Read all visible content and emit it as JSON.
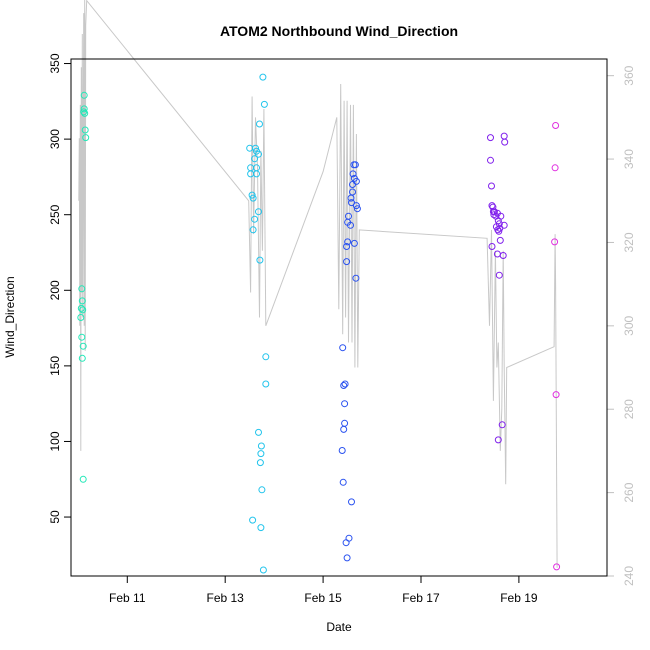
{
  "chart_data": {
    "type": "scatter",
    "title": "ATOM2 Northbound Wind_Direction",
    "xlabel": "Date",
    "ylabel": "Wind_Direction",
    "x_ticks": [
      "Feb 11",
      "Feb 13",
      "Feb 15",
      "Feb 17",
      "Feb 19"
    ],
    "x_tick_values": [
      11,
      13,
      15,
      17,
      19
    ],
    "xlim": [
      9.85,
      20.8
    ],
    "ylim": [
      11,
      353
    ],
    "y_ticks": [
      50,
      100,
      150,
      200,
      250,
      300,
      350
    ],
    "y2lim": [
      240,
      364
    ],
    "y2_ticks": [
      240,
      260,
      280,
      300,
      320,
      340,
      360
    ],
    "y2_color": "#c0c0c0",
    "line_color": "#c8c8c8",
    "grid": false,
    "points": [
      {
        "x": 10.07,
        "y": 201,
        "color": "#22e8b8"
      },
      {
        "x": 10.08,
        "y": 193,
        "color": "#22e8b8"
      },
      {
        "x": 10.06,
        "y": 188,
        "color": "#22e8b8"
      },
      {
        "x": 10.09,
        "y": 187,
        "color": "#22e8b8"
      },
      {
        "x": 10.05,
        "y": 182,
        "color": "#22e8b8"
      },
      {
        "x": 10.07,
        "y": 169,
        "color": "#22e8b8"
      },
      {
        "x": 10.1,
        "y": 163,
        "color": "#22e8b8"
      },
      {
        "x": 10.08,
        "y": 155,
        "color": "#22e8b8"
      },
      {
        "x": 10.1,
        "y": 75,
        "color": "#22e8b8"
      },
      {
        "x": 10.12,
        "y": 329,
        "color": "#22e8b8"
      },
      {
        "x": 10.12,
        "y": 320,
        "color": "#22e8b8"
      },
      {
        "x": 10.11,
        "y": 318,
        "color": "#22e8b8"
      },
      {
        "x": 10.13,
        "y": 317,
        "color": "#22e8b8"
      },
      {
        "x": 10.14,
        "y": 306,
        "color": "#22e8b8"
      },
      {
        "x": 10.15,
        "y": 301,
        "color": "#22e8b8"
      },
      {
        "x": 13.5,
        "y": 294,
        "color": "#22c4ec"
      },
      {
        "x": 13.62,
        "y": 294,
        "color": "#22c4ec"
      },
      {
        "x": 13.64,
        "y": 292,
        "color": "#22c4ec"
      },
      {
        "x": 13.68,
        "y": 290,
        "color": "#22c4ec"
      },
      {
        "x": 13.6,
        "y": 287,
        "color": "#22c4ec"
      },
      {
        "x": 13.52,
        "y": 281,
        "color": "#22c4ec"
      },
      {
        "x": 13.64,
        "y": 281,
        "color": "#22c4ec"
      },
      {
        "x": 13.52,
        "y": 277,
        "color": "#22c4ec"
      },
      {
        "x": 13.64,
        "y": 277,
        "color": "#22c4ec"
      },
      {
        "x": 13.55,
        "y": 263,
        "color": "#22c4ec"
      },
      {
        "x": 13.57,
        "y": 261,
        "color": "#22c4ec"
      },
      {
        "x": 13.68,
        "y": 252,
        "color": "#22c4ec"
      },
      {
        "x": 13.6,
        "y": 247,
        "color": "#22c4ec"
      },
      {
        "x": 13.57,
        "y": 240,
        "color": "#22c4ec"
      },
      {
        "x": 13.71,
        "y": 220,
        "color": "#22c4ec"
      },
      {
        "x": 13.7,
        "y": 310,
        "color": "#22c4ec"
      },
      {
        "x": 13.77,
        "y": 341,
        "color": "#22c4ec"
      },
      {
        "x": 13.8,
        "y": 323,
        "color": "#22c4ec"
      },
      {
        "x": 13.83,
        "y": 156,
        "color": "#22c4ec"
      },
      {
        "x": 13.83,
        "y": 138,
        "color": "#22c4ec"
      },
      {
        "x": 13.68,
        "y": 106,
        "color": "#22c4ec"
      },
      {
        "x": 13.74,
        "y": 97,
        "color": "#22c4ec"
      },
      {
        "x": 13.73,
        "y": 92,
        "color": "#22c4ec"
      },
      {
        "x": 13.72,
        "y": 86,
        "color": "#22c4ec"
      },
      {
        "x": 13.75,
        "y": 68,
        "color": "#22c4ec"
      },
      {
        "x": 13.56,
        "y": 48,
        "color": "#22c4ec"
      },
      {
        "x": 13.73,
        "y": 43,
        "color": "#22c4ec"
      },
      {
        "x": 13.78,
        "y": 15,
        "color": "#22c4ec"
      },
      {
        "x": 15.63,
        "y": 283,
        "color": "#2a52f0"
      },
      {
        "x": 15.66,
        "y": 283,
        "color": "#2a52f0"
      },
      {
        "x": 15.61,
        "y": 277,
        "color": "#2a52f0"
      },
      {
        "x": 15.64,
        "y": 274,
        "color": "#2a52f0"
      },
      {
        "x": 15.68,
        "y": 272,
        "color": "#2a52f0"
      },
      {
        "x": 15.6,
        "y": 270,
        "color": "#2a52f0"
      },
      {
        "x": 15.6,
        "y": 265,
        "color": "#2a52f0"
      },
      {
        "x": 15.57,
        "y": 261,
        "color": "#2a52f0"
      },
      {
        "x": 15.58,
        "y": 258,
        "color": "#2a52f0"
      },
      {
        "x": 15.68,
        "y": 256,
        "color": "#2a52f0"
      },
      {
        "x": 15.7,
        "y": 254,
        "color": "#2a52f0"
      },
      {
        "x": 15.52,
        "y": 249,
        "color": "#2a52f0"
      },
      {
        "x": 15.5,
        "y": 245,
        "color": "#2a52f0"
      },
      {
        "x": 15.56,
        "y": 243,
        "color": "#2a52f0"
      },
      {
        "x": 15.5,
        "y": 232,
        "color": "#2a52f0"
      },
      {
        "x": 15.64,
        "y": 231,
        "color": "#2a52f0"
      },
      {
        "x": 15.48,
        "y": 229,
        "color": "#2a52f0"
      },
      {
        "x": 15.48,
        "y": 219,
        "color": "#2a52f0"
      },
      {
        "x": 15.67,
        "y": 208,
        "color": "#2a52f0"
      },
      {
        "x": 15.4,
        "y": 162,
        "color": "#2a52f0"
      },
      {
        "x": 15.45,
        "y": 138,
        "color": "#2a52f0"
      },
      {
        "x": 15.42,
        "y": 137,
        "color": "#2a52f0"
      },
      {
        "x": 15.44,
        "y": 125,
        "color": "#2a52f0"
      },
      {
        "x": 15.44,
        "y": 112,
        "color": "#2a52f0"
      },
      {
        "x": 15.42,
        "y": 108,
        "color": "#2a52f0"
      },
      {
        "x": 15.39,
        "y": 94,
        "color": "#2a52f0"
      },
      {
        "x": 15.41,
        "y": 73,
        "color": "#2a52f0"
      },
      {
        "x": 15.58,
        "y": 60,
        "color": "#2a52f0"
      },
      {
        "x": 15.53,
        "y": 36,
        "color": "#2a52f0"
      },
      {
        "x": 15.47,
        "y": 33,
        "color": "#2a52f0"
      },
      {
        "x": 15.49,
        "y": 23,
        "color": "#2a52f0"
      },
      {
        "x": 18.42,
        "y": 301,
        "color": "#8020ec"
      },
      {
        "x": 18.7,
        "y": 302,
        "color": "#8020ec"
      },
      {
        "x": 18.71,
        "y": 298,
        "color": "#8020ec"
      },
      {
        "x": 18.42,
        "y": 286,
        "color": "#8020ec"
      },
      {
        "x": 18.44,
        "y": 269,
        "color": "#8020ec"
      },
      {
        "x": 18.45,
        "y": 256,
        "color": "#8020ec"
      },
      {
        "x": 18.47,
        "y": 255,
        "color": "#8020ec"
      },
      {
        "x": 18.48,
        "y": 252,
        "color": "#8020ec"
      },
      {
        "x": 18.5,
        "y": 252,
        "color": "#8020ec"
      },
      {
        "x": 18.56,
        "y": 251,
        "color": "#8020ec"
      },
      {
        "x": 18.49,
        "y": 250,
        "color": "#8020ec"
      },
      {
        "x": 18.53,
        "y": 249,
        "color": "#8020ec"
      },
      {
        "x": 18.63,
        "y": 249,
        "color": "#8020ec"
      },
      {
        "x": 18.58,
        "y": 246,
        "color": "#8020ec"
      },
      {
        "x": 18.6,
        "y": 244,
        "color": "#8020ec"
      },
      {
        "x": 18.54,
        "y": 242,
        "color": "#8020ec"
      },
      {
        "x": 18.7,
        "y": 243,
        "color": "#8020ec"
      },
      {
        "x": 18.61,
        "y": 241,
        "color": "#8020ec"
      },
      {
        "x": 18.57,
        "y": 240,
        "color": "#8020ec"
      },
      {
        "x": 18.59,
        "y": 239,
        "color": "#8020ec"
      },
      {
        "x": 18.62,
        "y": 233,
        "color": "#8020ec"
      },
      {
        "x": 18.45,
        "y": 229,
        "color": "#8020ec"
      },
      {
        "x": 18.56,
        "y": 224,
        "color": "#8020ec"
      },
      {
        "x": 18.68,
        "y": 223,
        "color": "#8020ec"
      },
      {
        "x": 18.6,
        "y": 210,
        "color": "#8020ec"
      },
      {
        "x": 18.66,
        "y": 111,
        "color": "#8020ec"
      },
      {
        "x": 18.58,
        "y": 101,
        "color": "#8020ec"
      },
      {
        "x": 19.75,
        "y": 309,
        "color": "#e030e0"
      },
      {
        "x": 19.74,
        "y": 281,
        "color": "#e030e0"
      },
      {
        "x": 19.73,
        "y": 232,
        "color": "#e030e0"
      },
      {
        "x": 19.76,
        "y": 131,
        "color": "#e030e0"
      },
      {
        "x": 19.77,
        "y": 17,
        "color": "#e030e0"
      }
    ],
    "line": [
      [
        10.01,
        330
      ],
      [
        10.02,
        345
      ],
      [
        10.03,
        300
      ],
      [
        10.04,
        353
      ],
      [
        10.05,
        270
      ],
      [
        10.06,
        362
      ],
      [
        10.07,
        308
      ],
      [
        10.08,
        370
      ],
      [
        10.09,
        302
      ],
      [
        10.11,
        375
      ],
      [
        10.12,
        300
      ],
      [
        10.13,
        380
      ],
      [
        10.14,
        294
      ],
      [
        10.15,
        372
      ],
      [
        10.17,
        378
      ],
      [
        13.48,
        330
      ],
      [
        13.52,
        308
      ],
      [
        13.55,
        355
      ],
      [
        13.58,
        322
      ],
      [
        13.62,
        350
      ],
      [
        13.66,
        338
      ],
      [
        13.7,
        302
      ],
      [
        13.73,
        342
      ],
      [
        13.76,
        318
      ],
      [
        13.79,
        352
      ],
      [
        13.83,
        300
      ],
      [
        15.0,
        337
      ],
      [
        15.28,
        350
      ],
      [
        15.32,
        304
      ],
      [
        15.36,
        358
      ],
      [
        15.4,
        298
      ],
      [
        15.43,
        354
      ],
      [
        15.46,
        302
      ],
      [
        15.49,
        354
      ],
      [
        15.52,
        296
      ],
      [
        15.56,
        353
      ],
      [
        15.59,
        296
      ],
      [
        15.62,
        353
      ],
      [
        15.65,
        290
      ],
      [
        15.68,
        346
      ],
      [
        15.71,
        290
      ],
      [
        15.74,
        323
      ],
      [
        18.35,
        321
      ],
      [
        18.4,
        300
      ],
      [
        18.44,
        323
      ],
      [
        18.48,
        282
      ],
      [
        18.52,
        318
      ],
      [
        18.55,
        290
      ],
      [
        18.58,
        296
      ],
      [
        18.62,
        270
      ],
      [
        18.65,
        280
      ],
      [
        18.68,
        318
      ],
      [
        18.7,
        290
      ],
      [
        18.73,
        262
      ],
      [
        18.75,
        290
      ],
      [
        19.72,
        295
      ],
      [
        19.74,
        322
      ],
      [
        19.75,
        310
      ],
      [
        19.78,
        242
      ]
    ]
  }
}
